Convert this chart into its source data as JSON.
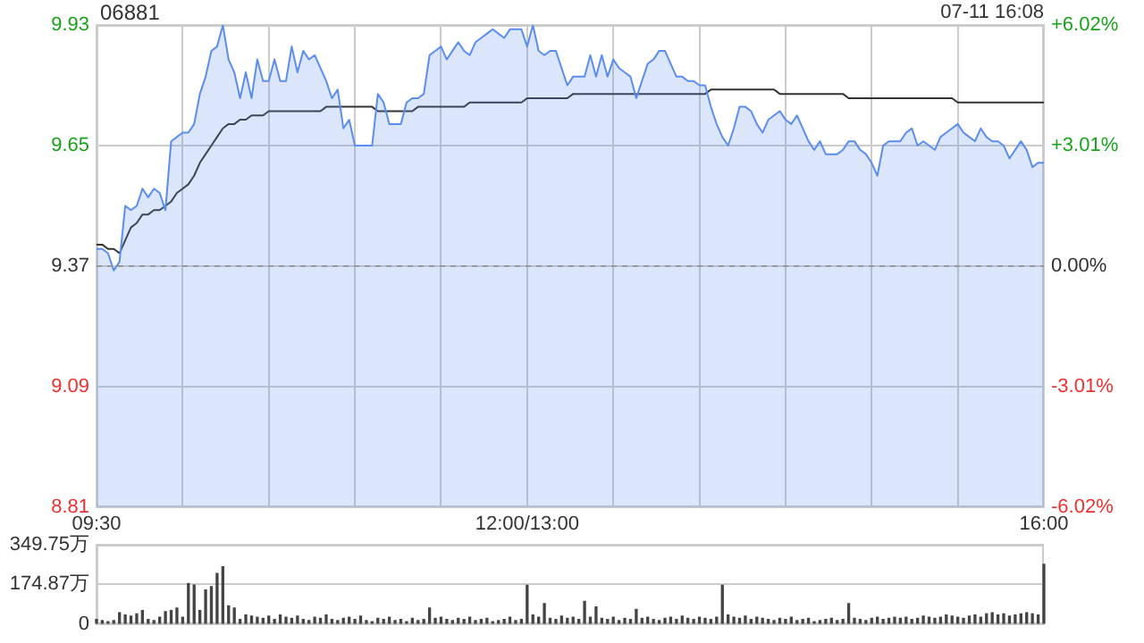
{
  "chart_data": [
    {
      "type": "area",
      "title": "06881",
      "annotations": [
        "07-11 16:08"
      ],
      "categories": [
        "09:30",
        null,
        null,
        null,
        null,
        null,
        null,
        null,
        null,
        null,
        null,
        null,
        null,
        null,
        null,
        null,
        null,
        null,
        null,
        null,
        null,
        null,
        null,
        null,
        null,
        null,
        null,
        null,
        null,
        null,
        null,
        null,
        null,
        null,
        null,
        null,
        null,
        null,
        null,
        null,
        null,
        null,
        null,
        null,
        null,
        null,
        null,
        null,
        null,
        null,
        null,
        null,
        null,
        null,
        null,
        null,
        null,
        null,
        null,
        null,
        null,
        null,
        null,
        null,
        null,
        null,
        null,
        null,
        null,
        null,
        null,
        null,
        null,
        null,
        null,
        "12:00/13:00",
        null,
        null,
        null,
        null,
        null,
        null,
        null,
        null,
        null,
        null,
        null,
        null,
        null,
        null,
        null,
        null,
        null,
        null,
        null,
        null,
        null,
        null,
        null,
        null,
        null,
        null,
        null,
        null,
        null,
        null,
        null,
        null,
        null,
        null,
        null,
        null,
        null,
        null,
        null,
        null,
        null,
        null,
        null,
        null,
        null,
        null,
        null,
        null,
        null,
        null,
        null,
        null,
        null,
        null,
        null,
        null,
        null,
        null,
        null,
        null,
        null,
        null,
        null,
        null,
        null,
        null,
        null,
        null,
        null,
        null,
        null,
        null,
        null,
        null,
        null,
        null,
        null,
        null,
        null,
        null,
        null,
        null,
        null,
        null,
        null,
        null,
        null,
        null,
        null,
        "16:00"
      ],
      "ylim": [
        8.81,
        9.93
      ],
      "yticks": [
        8.81,
        9.09,
        9.37,
        9.65,
        9.93
      ],
      "y2lim": [
        -6.02,
        6.02
      ],
      "y2ticks": [
        {
          "value": -6.02,
          "label": "-6.02%"
        },
        {
          "value": -3.01,
          "label": "-3.01%"
        },
        {
          "value": 0,
          "label": "0.00%"
        },
        {
          "value": 3.01,
          "label": "+3.01%"
        },
        {
          "value": 6.02,
          "label": "+6.02%"
        }
      ],
      "grid": true,
      "ref_lines": [
        {
          "axis": "y",
          "value": 9.37,
          "line_style": "dashed"
        }
      ],
      "series": [
        {
          "type": "area",
          "color": "#5b8def",
          "values": [
            9.41,
            9.41,
            9.4,
            9.36,
            9.38,
            9.51,
            9.5,
            9.51,
            9.55,
            9.53,
            9.55,
            9.54,
            9.5,
            9.66,
            9.67,
            9.68,
            9.68,
            9.7,
            9.77,
            9.81,
            9.87,
            9.88,
            9.93,
            9.85,
            9.82,
            9.76,
            9.82,
            9.76,
            9.85,
            9.8,
            9.8,
            9.85,
            9.8,
            9.8,
            9.88,
            9.82,
            9.87,
            9.85,
            9.86,
            9.83,
            9.8,
            9.76,
            9.78,
            9.69,
            9.71,
            9.65,
            9.65,
            9.65,
            9.65,
            9.77,
            9.75,
            9.7,
            9.7,
            9.7,
            9.75,
            9.76,
            9.76,
            9.77,
            9.86,
            9.87,
            9.88,
            9.85,
            9.87,
            9.89,
            9.87,
            9.86,
            9.89,
            9.9,
            9.91,
            9.92,
            9.91,
            9.9,
            9.92,
            9.92,
            9.92,
            9.88,
            9.93,
            9.87,
            9.86,
            9.87,
            9.87,
            9.83,
            9.79,
            9.81,
            9.81,
            9.81,
            9.86,
            9.81,
            9.86,
            9.81,
            9.85,
            9.83,
            9.82,
            9.81,
            9.76,
            9.8,
            9.84,
            9.85,
            9.87,
            9.87,
            9.84,
            9.81,
            9.81,
            9.8,
            9.8,
            9.79,
            9.79,
            9.74,
            9.7,
            9.67,
            9.65,
            9.69,
            9.74,
            9.74,
            9.73,
            9.7,
            9.68,
            9.71,
            9.72,
            9.73,
            9.71,
            9.7,
            9.72,
            9.69,
            9.66,
            9.64,
            9.66,
            9.63,
            9.63,
            9.63,
            9.64,
            9.66,
            9.66,
            9.64,
            9.63,
            9.61,
            9.58,
            9.65,
            9.66,
            9.66,
            9.66,
            9.68,
            9.69,
            9.65,
            9.66,
            9.65,
            9.64,
            9.67,
            9.68,
            9.69,
            9.7,
            9.68,
            9.67,
            9.66,
            9.69,
            9.67,
            9.66,
            9.66,
            9.65,
            9.62,
            9.64,
            9.66,
            9.64,
            9.6,
            9.61,
            9.61
          ]
        },
        {
          "type": "line",
          "color": "#333333",
          "values": [
            9.42,
            9.42,
            9.41,
            9.41,
            9.4,
            9.43,
            9.46,
            9.47,
            9.49,
            9.49,
            9.5,
            9.5,
            9.51,
            9.52,
            9.54,
            9.55,
            9.56,
            9.58,
            9.61,
            9.63,
            9.65,
            9.67,
            9.69,
            9.7,
            9.7,
            9.71,
            9.71,
            9.72,
            9.72,
            9.72,
            9.73,
            9.73,
            9.73,
            9.73,
            9.73,
            9.73,
            9.73,
            9.73,
            9.73,
            9.73,
            9.74,
            9.74,
            9.74,
            9.74,
            9.74,
            9.74,
            9.74,
            9.74,
            9.74,
            9.73,
            9.73,
            9.73,
            9.73,
            9.73,
            9.73,
            9.73,
            9.74,
            9.74,
            9.74,
            9.74,
            9.74,
            9.74,
            9.74,
            9.74,
            9.74,
            9.75,
            9.75,
            9.75,
            9.75,
            9.75,
            9.75,
            9.75,
            9.75,
            9.75,
            9.75,
            9.76,
            9.76,
            9.76,
            9.76,
            9.76,
            9.76,
            9.76,
            9.76,
            9.77,
            9.77,
            9.77,
            9.77,
            9.77,
            9.77,
            9.77,
            9.77,
            9.77,
            9.77,
            9.77,
            9.77,
            9.77,
            9.77,
            9.77,
            9.77,
            9.77,
            9.77,
            9.77,
            9.77,
            9.77,
            9.77,
            9.77,
            9.77,
            9.78,
            9.78,
            9.78,
            9.78,
            9.78,
            9.78,
            9.78,
            9.78,
            9.78,
            9.78,
            9.78,
            9.78,
            9.77,
            9.77,
            9.77,
            9.77,
            9.77,
            9.77,
            9.77,
            9.77,
            9.77,
            9.77,
            9.77,
            9.77,
            9.76,
            9.76,
            9.76,
            9.76,
            9.76,
            9.76,
            9.76,
            9.76,
            9.76,
            9.76,
            9.76,
            9.76,
            9.76,
            9.76,
            9.76,
            9.76,
            9.76,
            9.76,
            9.76,
            9.75,
            9.75,
            9.75,
            9.75,
            9.75,
            9.75,
            9.75,
            9.75,
            9.75,
            9.75,
            9.75,
            9.75,
            9.75,
            9.75,
            9.75,
            9.75
          ]
        }
      ]
    },
    {
      "type": "bar",
      "color": "#444444",
      "tick_labels": "y",
      "grid": "y",
      "categories": [
        null,
        null,
        null,
        null,
        null,
        null,
        null,
        null,
        null,
        null,
        null,
        null,
        null,
        null,
        null,
        null,
        null,
        null,
        null,
        null,
        null,
        null,
        null,
        null,
        null,
        null,
        null,
        null,
        null,
        null,
        null,
        null,
        null,
        null,
        null,
        null,
        null,
        null,
        null,
        null,
        null,
        null,
        null,
        null,
        null,
        null,
        null,
        null,
        null,
        null,
        null,
        null,
        null,
        null,
        null,
        null,
        null,
        null,
        null,
        null,
        null,
        null,
        null,
        null,
        null,
        null,
        null,
        null,
        null,
        null,
        null,
        null,
        null,
        null,
        null,
        null,
        null,
        null,
        null,
        null,
        null,
        null,
        null,
        null,
        null,
        null,
        null,
        null,
        null,
        null,
        null,
        null,
        null,
        null,
        null,
        null,
        null,
        null,
        null,
        null,
        null,
        null,
        null,
        null,
        null,
        null,
        null,
        null,
        null,
        null,
        null,
        null,
        null,
        null,
        null,
        null,
        null,
        null,
        null,
        null,
        null,
        null,
        null,
        null,
        null,
        null,
        null,
        null,
        null,
        null,
        null,
        null,
        null,
        null,
        null,
        null,
        null,
        null,
        null,
        null,
        null,
        null,
        null,
        null,
        null,
        null,
        null,
        null,
        null,
        null,
        null,
        null,
        null,
        null,
        null,
        null,
        null,
        null,
        null,
        null,
        null,
        null,
        null,
        null,
        null,
        null
      ],
      "ylim": [
        0,
        349.75
      ],
      "yticks": [
        0,
        {
          "value": 174.87,
          "label": "174.87万"
        },
        {
          "value": 349.75,
          "label": "349.75万"
        }
      ],
      "values": [
        20,
        15,
        10,
        15,
        50,
        40,
        35,
        45,
        60,
        20,
        15,
        30,
        55,
        60,
        70,
        30,
        179,
        172,
        60,
        150,
        165,
        223,
        253,
        80,
        70,
        20,
        40,
        35,
        30,
        25,
        35,
        20,
        40,
        30,
        25,
        35,
        20,
        15,
        30,
        25,
        40,
        20,
        15,
        25,
        30,
        20,
        35,
        15,
        10,
        25,
        20,
        30,
        15,
        20,
        10,
        25,
        15,
        20,
        70,
        25,
        30,
        20,
        15,
        25,
        20,
        30,
        15,
        20,
        25,
        10,
        15,
        20,
        30,
        15,
        20,
        171,
        40,
        30,
        90,
        25,
        20,
        35,
        25,
        30,
        20,
        100,
        30,
        75,
        25,
        20,
        30,
        15,
        25,
        20,
        65,
        25,
        30,
        20,
        15,
        25,
        30,
        20,
        35,
        25,
        20,
        30,
        25,
        20,
        30,
        171,
        40,
        30,
        25,
        35,
        20,
        30,
        25,
        20,
        15,
        25,
        20,
        30,
        15,
        20,
        25,
        10,
        15,
        20,
        25,
        15,
        20,
        90,
        25,
        20,
        15,
        25,
        30,
        20,
        25,
        30,
        25,
        30,
        20,
        25,
        35,
        30,
        25,
        30,
        40,
        35,
        30,
        25,
        35,
        40,
        30,
        45,
        50,
        40,
        45,
        35,
        40,
        45,
        50,
        45,
        40,
        263
      ]
    }
  ]
}
